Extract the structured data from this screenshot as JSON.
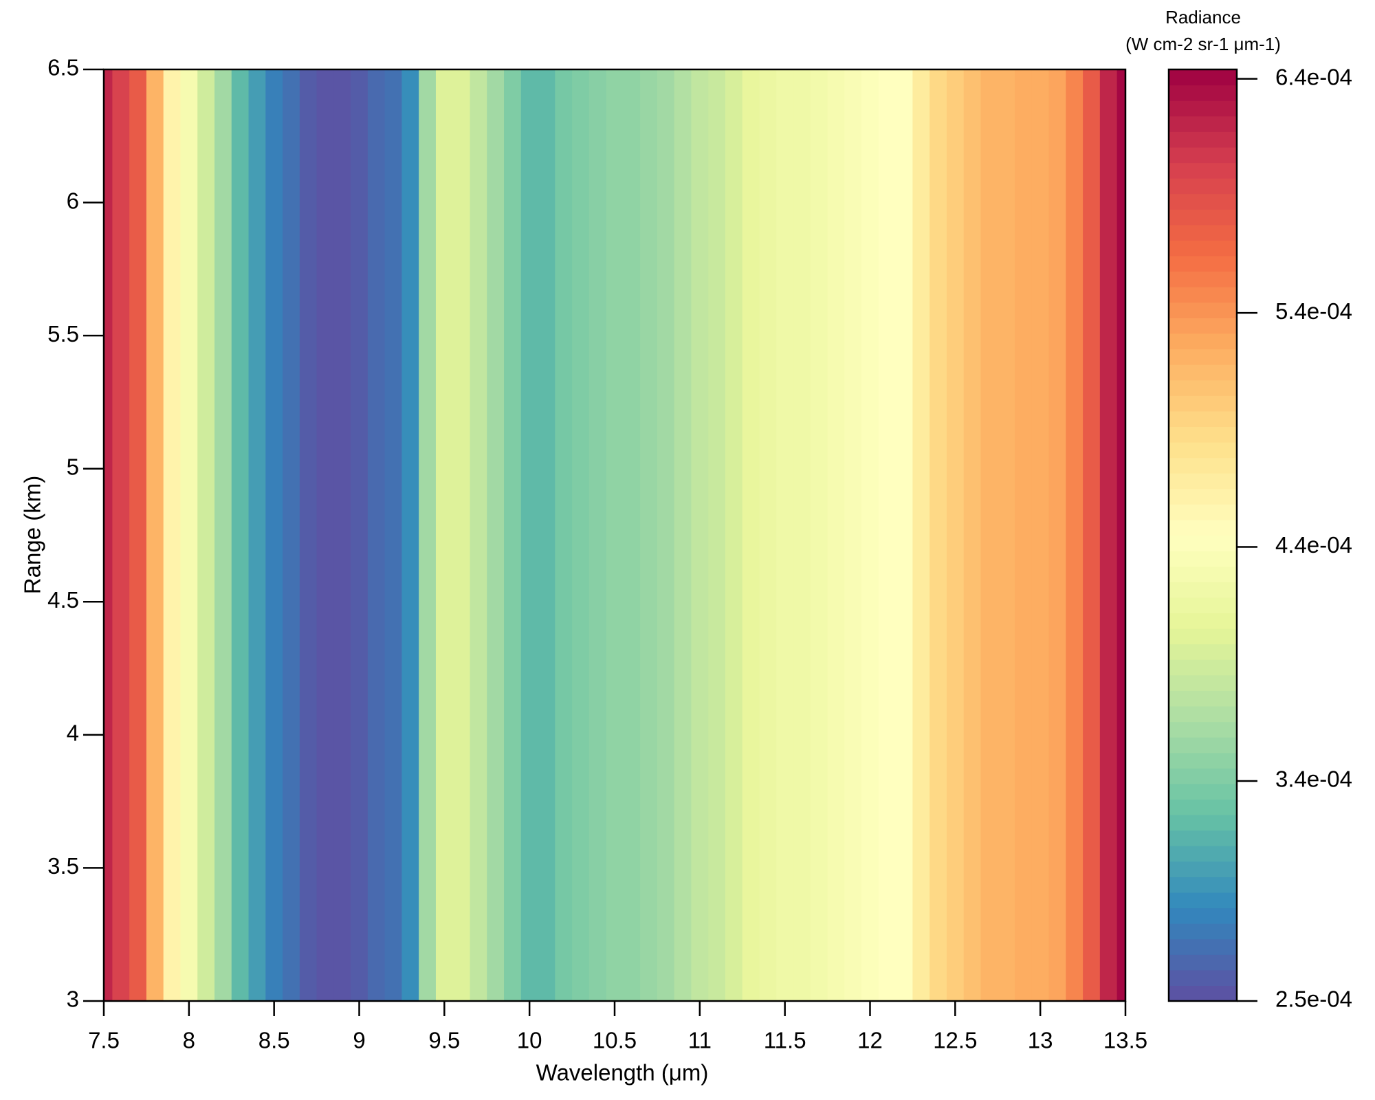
{
  "chart_data": {
    "type": "heatmap",
    "xlabel": "Wavelength (μm)",
    "ylabel": "Range (km)",
    "colorbar_label": [
      "Radiance",
      "(W cm-2 sr-1  μm-1)"
    ],
    "x": [
      7.5,
      7.6,
      7.7,
      7.8,
      7.9,
      8.0,
      8.1,
      8.2,
      8.3,
      8.4,
      8.5,
      8.6,
      8.7,
      8.8,
      8.9,
      9.0,
      9.1,
      9.2,
      9.3,
      9.4,
      9.5,
      9.6,
      9.7,
      9.8,
      9.9,
      10.0,
      10.1,
      10.2,
      10.3,
      10.4,
      10.5,
      10.6,
      10.7,
      10.8,
      10.9,
      11.0,
      11.1,
      11.2,
      11.3,
      11.4,
      11.5,
      11.6,
      11.7,
      11.8,
      11.9,
      12.0,
      12.1,
      12.2,
      12.3,
      12.4,
      12.5,
      12.6,
      12.7,
      12.8,
      12.9,
      13.0,
      13.1,
      13.2,
      13.3,
      13.4,
      13.5
    ],
    "values": [
      0.00062,
      0.0006,
      0.00058,
      0.00052,
      0.00046,
      0.00043,
      0.00039,
      0.00036,
      0.00032,
      0.0003,
      0.00028,
      0.00027,
      0.000255,
      0.00025,
      0.00025,
      0.000255,
      0.000265,
      0.00027,
      0.00029,
      0.00036,
      0.0004,
      0.0004,
      0.00038,
      0.00036,
      0.00034,
      0.00032,
      0.00032,
      0.000335,
      0.00034,
      0.000345,
      0.00035,
      0.00035,
      0.000355,
      0.00036,
      0.00037,
      0.00038,
      0.000385,
      0.000395,
      0.00041,
      0.000415,
      0.00042,
      0.00042,
      0.000425,
      0.00043,
      0.000435,
      0.00044,
      0.000445,
      0.000445,
      0.00047,
      0.00049,
      0.0005,
      0.00051,
      0.00052,
      0.00052,
      0.000525,
      0.000525,
      0.00053,
      0.00055,
      0.00058,
      0.00062,
      0.00064
    ],
    "xlim": [
      7.5,
      13.5
    ],
    "xticks": [
      7.5,
      8,
      8.5,
      9,
      9.5,
      10,
      10.5,
      11,
      11.5,
      12,
      12.5,
      13,
      13.5
    ],
    "ylim": [
      3,
      6.5
    ],
    "yticks": [
      3,
      3.5,
      4,
      4.5,
      5,
      5.5,
      6,
      6.5
    ],
    "clim": [
      0.000246,
      0.000644
    ],
    "cticks": [
      {
        "value": 0.000246,
        "label": "2.5e-04"
      },
      {
        "value": 0.00034,
        "label": "3.4e-04"
      },
      {
        "value": 0.00044,
        "label": "4.4e-04"
      },
      {
        "value": 0.00054,
        "label": "5.4e-04"
      },
      {
        "value": 0.00064,
        "label": "6.4e-04"
      }
    ],
    "colormap": [
      "#5e4fa2",
      "#3288bd",
      "#66c2a5",
      "#abdda4",
      "#e6f598",
      "#ffffbf",
      "#fee08b",
      "#fdae61",
      "#f46d43",
      "#d53e4f",
      "#9e0142"
    ]
  }
}
